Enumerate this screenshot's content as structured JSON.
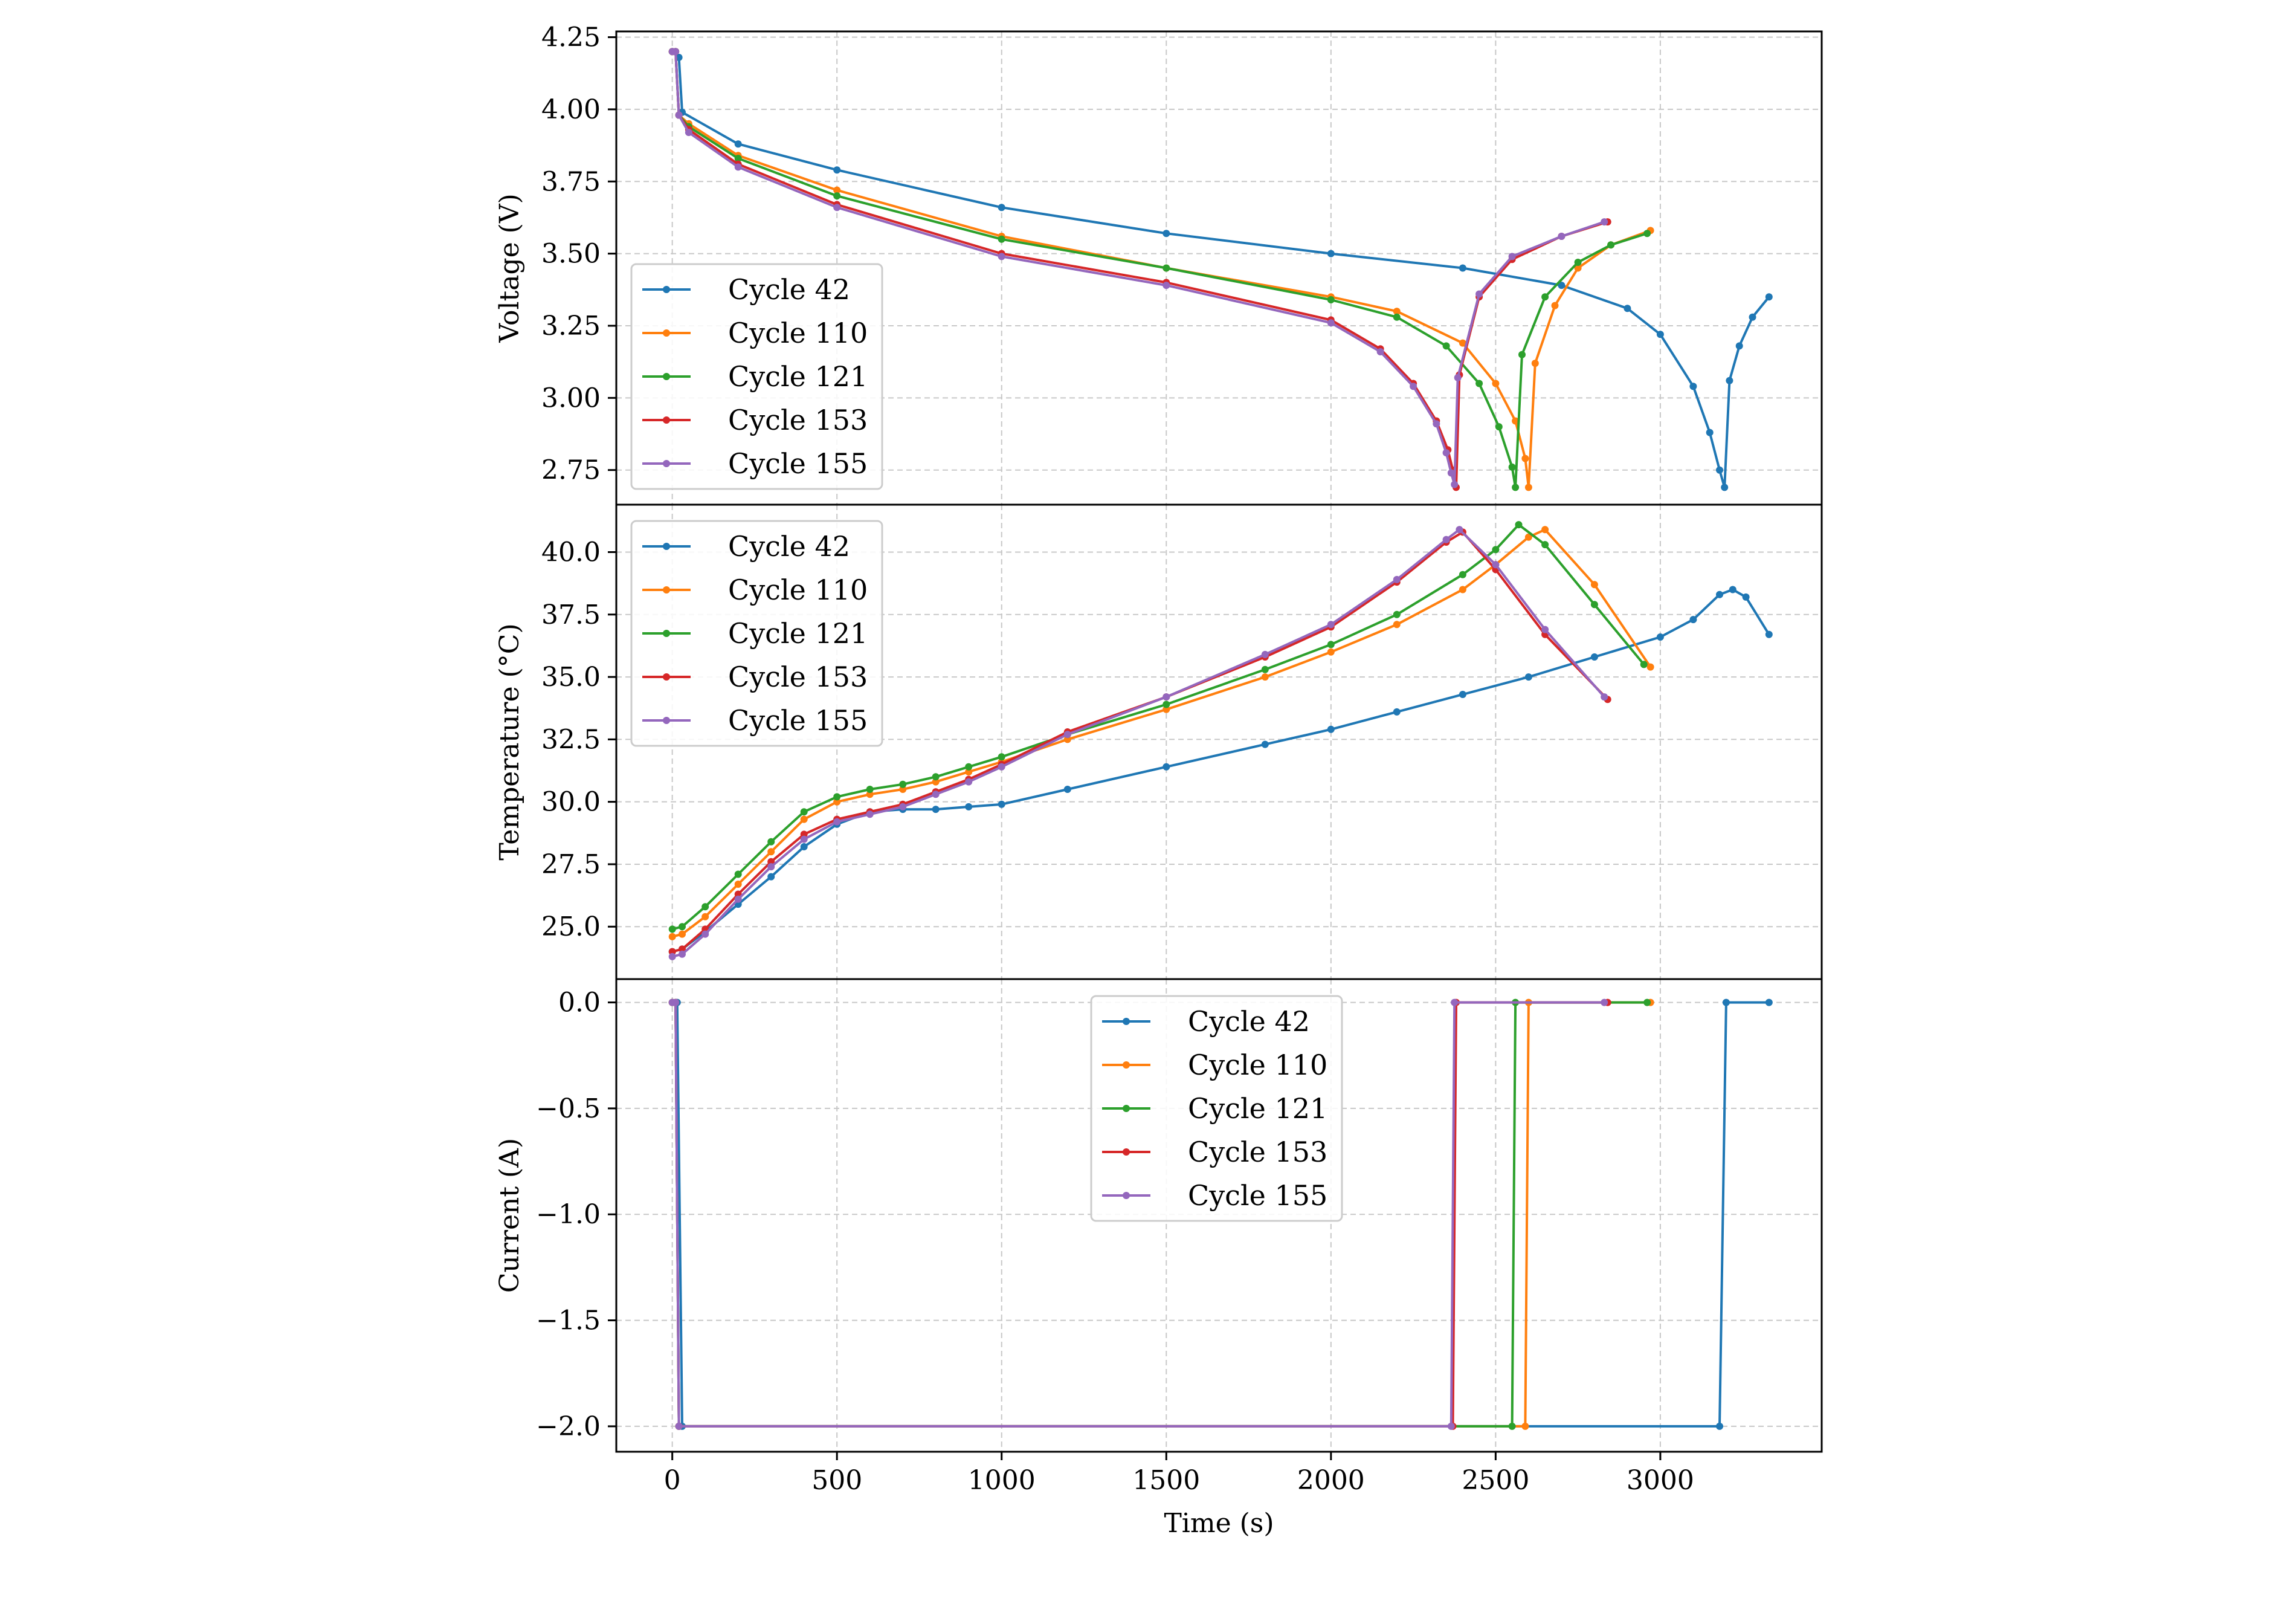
{
  "colors": {
    "Cycle 42": "#1f77b4",
    "Cycle 110": "#ff7f0e",
    "Cycle 121": "#2ca02c",
    "Cycle 153": "#d62728",
    "Cycle 155": "#9467bd"
  },
  "chart_data": [
    {
      "type": "line",
      "ylabel": "Voltage (V)",
      "xlim": [
        -170,
        3490
      ],
      "ylim": [
        2.63,
        4.27
      ],
      "yticks": [
        2.75,
        3.0,
        3.25,
        3.5,
        3.75,
        4.0,
        4.25
      ],
      "ytick_labels": [
        "2.75",
        "3.00",
        "3.25",
        "3.50",
        "3.75",
        "4.00",
        "4.25"
      ],
      "grid": true,
      "legend_placement": "lower-left",
      "series": [
        {
          "name": "Cycle 42",
          "x": [
            0,
            10,
            20,
            30,
            200,
            500,
            1000,
            1500,
            2000,
            2400,
            2700,
            2900,
            3000,
            3100,
            3150,
            3180,
            3195,
            3210,
            3240,
            3280,
            3330
          ],
          "y": [
            4.2,
            4.2,
            4.18,
            3.99,
            3.88,
            3.79,
            3.66,
            3.57,
            3.5,
            3.45,
            3.39,
            3.31,
            3.22,
            3.04,
            2.88,
            2.75,
            2.69,
            3.06,
            3.18,
            3.28,
            3.35
          ]
        },
        {
          "name": "Cycle 110",
          "x": [
            0,
            10,
            20,
            50,
            200,
            500,
            1000,
            1500,
            2000,
            2200,
            2400,
            2500,
            2560,
            2590,
            2600,
            2620,
            2680,
            2750,
            2850,
            2970
          ],
          "y": [
            4.2,
            4.2,
            3.98,
            3.95,
            3.84,
            3.72,
            3.56,
            3.45,
            3.35,
            3.3,
            3.19,
            3.05,
            2.92,
            2.79,
            2.69,
            3.12,
            3.32,
            3.45,
            3.53,
            3.58
          ]
        },
        {
          "name": "Cycle 121",
          "x": [
            0,
            10,
            20,
            50,
            200,
            500,
            1000,
            1500,
            2000,
            2200,
            2350,
            2450,
            2510,
            2550,
            2560,
            2580,
            2650,
            2750,
            2850,
            2960
          ],
          "y": [
            4.2,
            4.2,
            3.98,
            3.94,
            3.83,
            3.7,
            3.55,
            3.45,
            3.34,
            3.28,
            3.18,
            3.05,
            2.9,
            2.76,
            2.69,
            3.15,
            3.35,
            3.47,
            3.53,
            3.57
          ]
        },
        {
          "name": "Cycle 153",
          "x": [
            0,
            10,
            20,
            50,
            200,
            500,
            1000,
            1500,
            2000,
            2150,
            2250,
            2320,
            2355,
            2370,
            2380,
            2390,
            2450,
            2550,
            2700,
            2840
          ],
          "y": [
            4.2,
            4.2,
            3.98,
            3.93,
            3.81,
            3.67,
            3.5,
            3.4,
            3.27,
            3.17,
            3.05,
            2.92,
            2.82,
            2.75,
            2.69,
            3.08,
            3.35,
            3.48,
            3.56,
            3.61
          ]
        },
        {
          "name": "Cycle 155",
          "x": [
            0,
            10,
            20,
            50,
            200,
            500,
            1000,
            1500,
            2000,
            2150,
            2250,
            2320,
            2350,
            2365,
            2375,
            2385,
            2450,
            2550,
            2700,
            2830
          ],
          "y": [
            4.2,
            4.2,
            3.98,
            3.92,
            3.8,
            3.66,
            3.49,
            3.39,
            3.26,
            3.16,
            3.04,
            2.91,
            2.81,
            2.74,
            2.7,
            3.07,
            3.36,
            3.49,
            3.56,
            3.61
          ]
        }
      ]
    },
    {
      "type": "line",
      "ylabel": "Temperature (°C)",
      "xlim": [
        -170,
        3490
      ],
      "ylim": [
        22.9,
        41.9
      ],
      "yticks": [
        25.0,
        27.5,
        30.0,
        32.5,
        35.0,
        37.5,
        40.0
      ],
      "ytick_labels": [
        "25.0",
        "27.5",
        "30.0",
        "32.5",
        "35.0",
        "37.5",
        "40.0"
      ],
      "grid": true,
      "legend_placement": "upper-left",
      "series": [
        {
          "name": "Cycle 42",
          "x": [
            0,
            30,
            100,
            200,
            300,
            400,
            500,
            600,
            700,
            800,
            900,
            1000,
            1200,
            1500,
            1800,
            2000,
            2200,
            2400,
            2600,
            2800,
            3000,
            3100,
            3180,
            3220,
            3260,
            3330
          ],
          "y": [
            24.0,
            24.1,
            24.8,
            25.9,
            27.0,
            28.2,
            29.1,
            29.6,
            29.7,
            29.7,
            29.8,
            29.9,
            30.5,
            31.4,
            32.3,
            32.9,
            33.6,
            34.3,
            35.0,
            35.8,
            36.6,
            37.3,
            38.3,
            38.5,
            38.2,
            36.7
          ]
        },
        {
          "name": "Cycle 110",
          "x": [
            0,
            30,
            100,
            200,
            300,
            400,
            500,
            600,
            700,
            800,
            900,
            1000,
            1200,
            1500,
            1800,
            2000,
            2200,
            2400,
            2500,
            2600,
            2650,
            2800,
            2970
          ],
          "y": [
            24.6,
            24.7,
            25.4,
            26.7,
            28.0,
            29.3,
            30.0,
            30.3,
            30.5,
            30.8,
            31.2,
            31.6,
            32.5,
            33.7,
            35.0,
            36.0,
            37.1,
            38.5,
            39.5,
            40.6,
            40.9,
            38.7,
            35.4
          ]
        },
        {
          "name": "Cycle 121",
          "x": [
            0,
            30,
            100,
            200,
            300,
            400,
            500,
            600,
            700,
            800,
            900,
            1000,
            1200,
            1500,
            1800,
            2000,
            2200,
            2400,
            2500,
            2570,
            2650,
            2800,
            2950
          ],
          "y": [
            24.9,
            25.0,
            25.8,
            27.1,
            28.4,
            29.6,
            30.2,
            30.5,
            30.7,
            31.0,
            31.4,
            31.8,
            32.7,
            33.9,
            35.3,
            36.3,
            37.5,
            39.1,
            40.1,
            41.1,
            40.3,
            37.9,
            35.5
          ]
        },
        {
          "name": "Cycle 153",
          "x": [
            0,
            30,
            100,
            200,
            300,
            400,
            500,
            600,
            700,
            800,
            900,
            1000,
            1200,
            1500,
            1800,
            2000,
            2200,
            2350,
            2400,
            2500,
            2650,
            2840
          ],
          "y": [
            24.0,
            24.1,
            24.9,
            26.3,
            27.6,
            28.7,
            29.3,
            29.6,
            29.9,
            30.4,
            30.9,
            31.5,
            32.8,
            34.2,
            35.8,
            37.0,
            38.8,
            40.4,
            40.8,
            39.3,
            36.7,
            34.1
          ]
        },
        {
          "name": "Cycle 155",
          "x": [
            0,
            30,
            100,
            200,
            300,
            400,
            500,
            600,
            700,
            800,
            900,
            1000,
            1200,
            1500,
            1800,
            2000,
            2200,
            2350,
            2390,
            2500,
            2650,
            2830
          ],
          "y": [
            23.8,
            23.9,
            24.7,
            26.1,
            27.4,
            28.5,
            29.2,
            29.5,
            29.8,
            30.3,
            30.8,
            31.4,
            32.7,
            34.2,
            35.9,
            37.1,
            38.9,
            40.5,
            40.9,
            39.5,
            36.9,
            34.2
          ]
        }
      ]
    },
    {
      "type": "line",
      "ylabel": "Current (A)",
      "xlabel": "Time (s)",
      "xlim": [
        -170,
        3490
      ],
      "ylim": [
        -2.12,
        0.11
      ],
      "yticks": [
        -2.0,
        -1.5,
        -1.0,
        -0.5,
        0.0
      ],
      "ytick_labels": [
        "−2.0",
        "−1.5",
        "−1.0",
        "−0.5",
        "0.0"
      ],
      "xticks": [
        0,
        500,
        1000,
        1500,
        2000,
        2500,
        3000
      ],
      "xtick_labels": [
        "0",
        "500",
        "1000",
        "1500",
        "2000",
        "2500",
        "3000"
      ],
      "grid": true,
      "legend_placement": "upper-center",
      "series": [
        {
          "name": "Cycle 42",
          "x": [
            0,
            15,
            30,
            3180,
            3200,
            3330
          ],
          "y": [
            0.0,
            0.0,
            -2.0,
            -2.0,
            0.0,
            0.0
          ]
        },
        {
          "name": "Cycle 110",
          "x": [
            0,
            10,
            20,
            2590,
            2600,
            2970
          ],
          "y": [
            0.0,
            0.0,
            -2.0,
            -2.0,
            0.0,
            0.0
          ]
        },
        {
          "name": "Cycle 121",
          "x": [
            0,
            10,
            20,
            2550,
            2560,
            2960
          ],
          "y": [
            0.0,
            0.0,
            -2.0,
            -2.0,
            0.0,
            0.0
          ]
        },
        {
          "name": "Cycle 153",
          "x": [
            0,
            10,
            20,
            2370,
            2380,
            2840
          ],
          "y": [
            0.0,
            0.0,
            -2.0,
            -2.0,
            0.0,
            0.0
          ]
        },
        {
          "name": "Cycle 155",
          "x": [
            0,
            10,
            20,
            2365,
            2375,
            2830
          ],
          "y": [
            0.0,
            0.0,
            -2.0,
            -2.0,
            0.0,
            0.0
          ]
        }
      ]
    }
  ]
}
